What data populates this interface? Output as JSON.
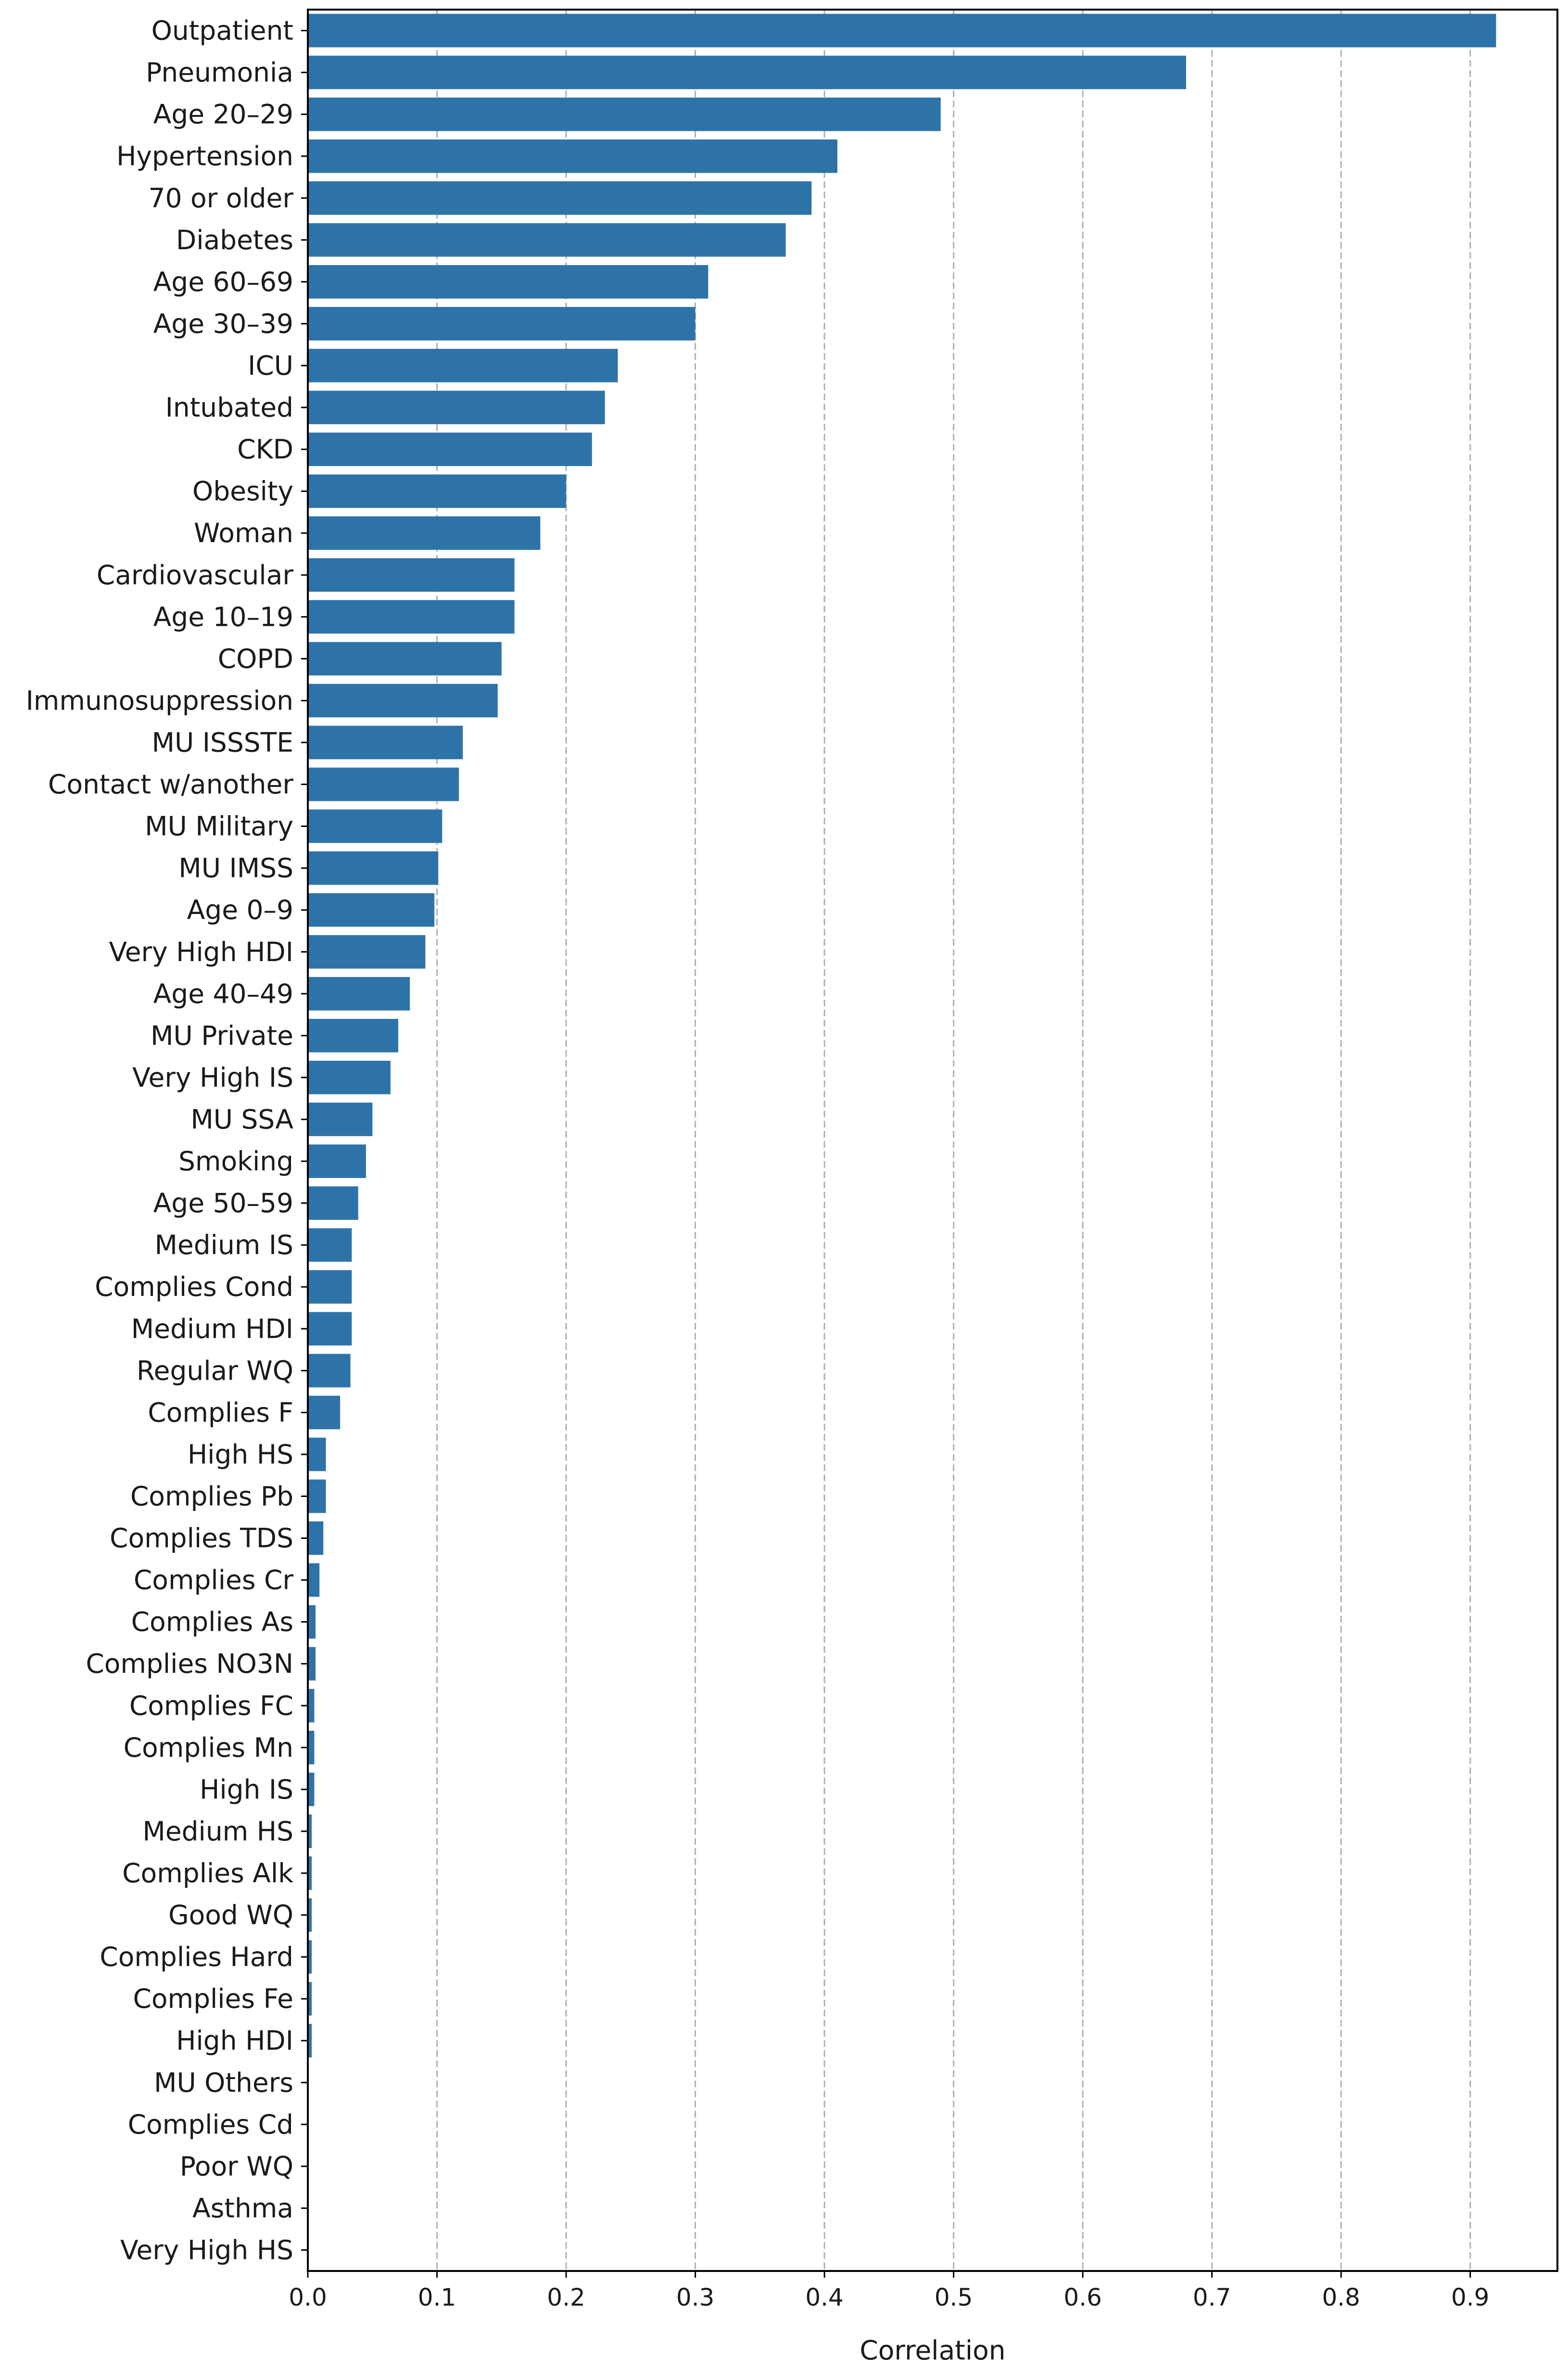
{
  "chart_data": {
    "type": "bar",
    "orientation": "horizontal",
    "xlabel": "Correlation",
    "ylabel": "",
    "xlim": [
      0,
      0.9675
    ],
    "xticks": [
      0.0,
      0.1,
      0.2,
      0.3,
      0.4,
      0.5,
      0.6,
      0.7,
      0.8,
      0.9
    ],
    "xtick_labels": [
      "0.0",
      "0.1",
      "0.2",
      "0.3",
      "0.4",
      "0.5",
      "0.6",
      "0.7",
      "0.8",
      "0.9"
    ],
    "grid": {
      "x": true,
      "y": false,
      "style": "dashed"
    },
    "bar_color": "#2e73a8",
    "categories": [
      "Outpatient",
      "Pneumonia",
      "Age 20–29",
      "Hypertension",
      "70 or older",
      "Diabetes",
      "Age 60–69",
      "Age 30–39",
      "ICU",
      "Intubated",
      "CKD",
      "Obesity",
      "Woman",
      "Cardiovascular",
      "Age 10–19",
      "COPD",
      "Immunosuppression",
      "MU ISSSTE",
      "Contact w/another",
      "MU Military",
      "MU IMSS",
      "Age 0–9",
      "Very High HDI",
      "Age 40–49",
      "MU Private",
      "Very High IS",
      "MU SSA",
      "Smoking",
      "Age 50–59",
      "Medium IS",
      "Complies Cond",
      "Medium HDI",
      "Regular WQ",
      "Complies F",
      "High HS",
      "Complies Pb",
      "Complies TDS",
      "Complies Cr",
      "Complies As",
      "Complies NO3N",
      "Complies FC",
      "Complies Mn",
      "High IS",
      "Medium HS",
      "Complies Alk",
      "Good WQ",
      "Complies Hard",
      "Complies Fe",
      "High HDI",
      "MU Others",
      "Complies Cd",
      "Poor WQ",
      "Asthma",
      "Very High HS"
    ],
    "values": [
      0.92,
      0.68,
      0.49,
      0.41,
      0.39,
      0.37,
      0.31,
      0.3,
      0.24,
      0.23,
      0.22,
      0.2,
      0.18,
      0.16,
      0.16,
      0.15,
      0.147,
      0.12,
      0.117,
      0.104,
      0.101,
      0.098,
      0.091,
      0.079,
      0.07,
      0.064,
      0.05,
      0.045,
      0.039,
      0.034,
      0.034,
      0.034,
      0.033,
      0.025,
      0.014,
      0.014,
      0.012,
      0.009,
      0.006,
      0.006,
      0.005,
      0.005,
      0.005,
      0.003,
      0.003,
      0.003,
      0.003,
      0.003,
      0.003,
      0.0,
      0.0,
      0.0,
      0.0,
      0.0
    ]
  }
}
